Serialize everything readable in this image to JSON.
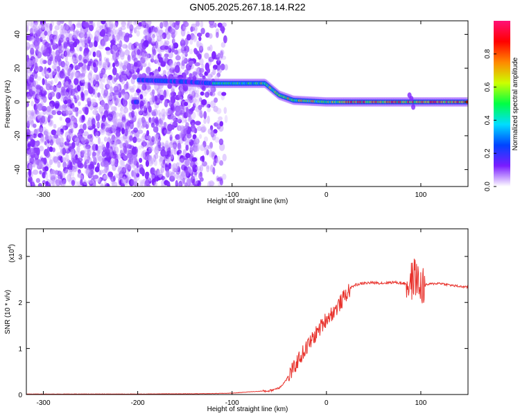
{
  "figure": {
    "title": "GN05.2025.267.18.14.R22"
  },
  "chart_data": [
    {
      "type": "heatmap",
      "xlabel": "Height of straight line (km)",
      "ylabel": "Frequency (Hz)",
      "xlim": [
        -318,
        150
      ],
      "ylim": [
        -50,
        48
      ],
      "xticks": [
        -300,
        -200,
        -100,
        0,
        100
      ],
      "yticks": [
        -40,
        -20,
        0,
        20,
        40
      ],
      "colorbar": {
        "label": "Normalized spectral amplitude",
        "range": [
          0,
          1
        ],
        "ticks": [
          0.0,
          0.2,
          0.4,
          0.6,
          0.8
        ],
        "colors": [
          "#ffffff",
          "#7a1cff",
          "#0044ff",
          "#00ddff",
          "#00ff44",
          "#ccff00",
          "#ff8800",
          "#ff0000",
          "#ff1177"
        ]
      },
      "noise_region_x": [
        -318,
        -105
      ],
      "ridge": {
        "description_points": [
          {
            "x": -200,
            "y": 13
          },
          {
            "x": -150,
            "y": 12
          },
          {
            "x": -120,
            "y": 11
          },
          {
            "x": -65,
            "y": 11
          },
          {
            "x": -50,
            "y": 4
          },
          {
            "x": -35,
            "y": 1
          },
          {
            "x": 0,
            "y": 0
          },
          {
            "x": 150,
            "y": 0
          }
        ]
      }
    },
    {
      "type": "line",
      "xlabel": "Height of straight line (km)",
      "ylabel": "SNR (10 * v/v)",
      "y_multiplier_label": "(x10",
      "y_multiplier_exp": "4",
      "xlim": [
        -318,
        150
      ],
      "ylim": [
        0,
        3.6
      ],
      "xticks": [
        -300,
        -200,
        -100,
        0,
        100
      ],
      "yticks": [
        0,
        1,
        2,
        3
      ],
      "color": "#e8302a",
      "x": [
        -318,
        -250,
        -200,
        -120,
        -100,
        -80,
        -60,
        -50,
        -45,
        -40,
        -35,
        -30,
        -25,
        -20,
        -15,
        -10,
        -5,
        0,
        5,
        10,
        15,
        20,
        25,
        30,
        35,
        40,
        50,
        60,
        70,
        80,
        88,
        92,
        95,
        97,
        100,
        105,
        110,
        120,
        130,
        140,
        150
      ],
      "values": [
        0.01,
        0.01,
        0.01,
        0.02,
        0.03,
        0.06,
        0.08,
        0.15,
        0.25,
        0.4,
        0.55,
        0.75,
        0.9,
        1.05,
        1.2,
        1.35,
        1.5,
        1.65,
        1.75,
        1.85,
        2.0,
        2.15,
        2.3,
        2.38,
        2.4,
        2.42,
        2.43,
        2.42,
        2.44,
        2.42,
        2.4,
        2.5,
        2.6,
        2.4,
        2.35,
        2.38,
        2.4,
        2.42,
        2.38,
        2.35,
        2.33
      ]
    }
  ]
}
